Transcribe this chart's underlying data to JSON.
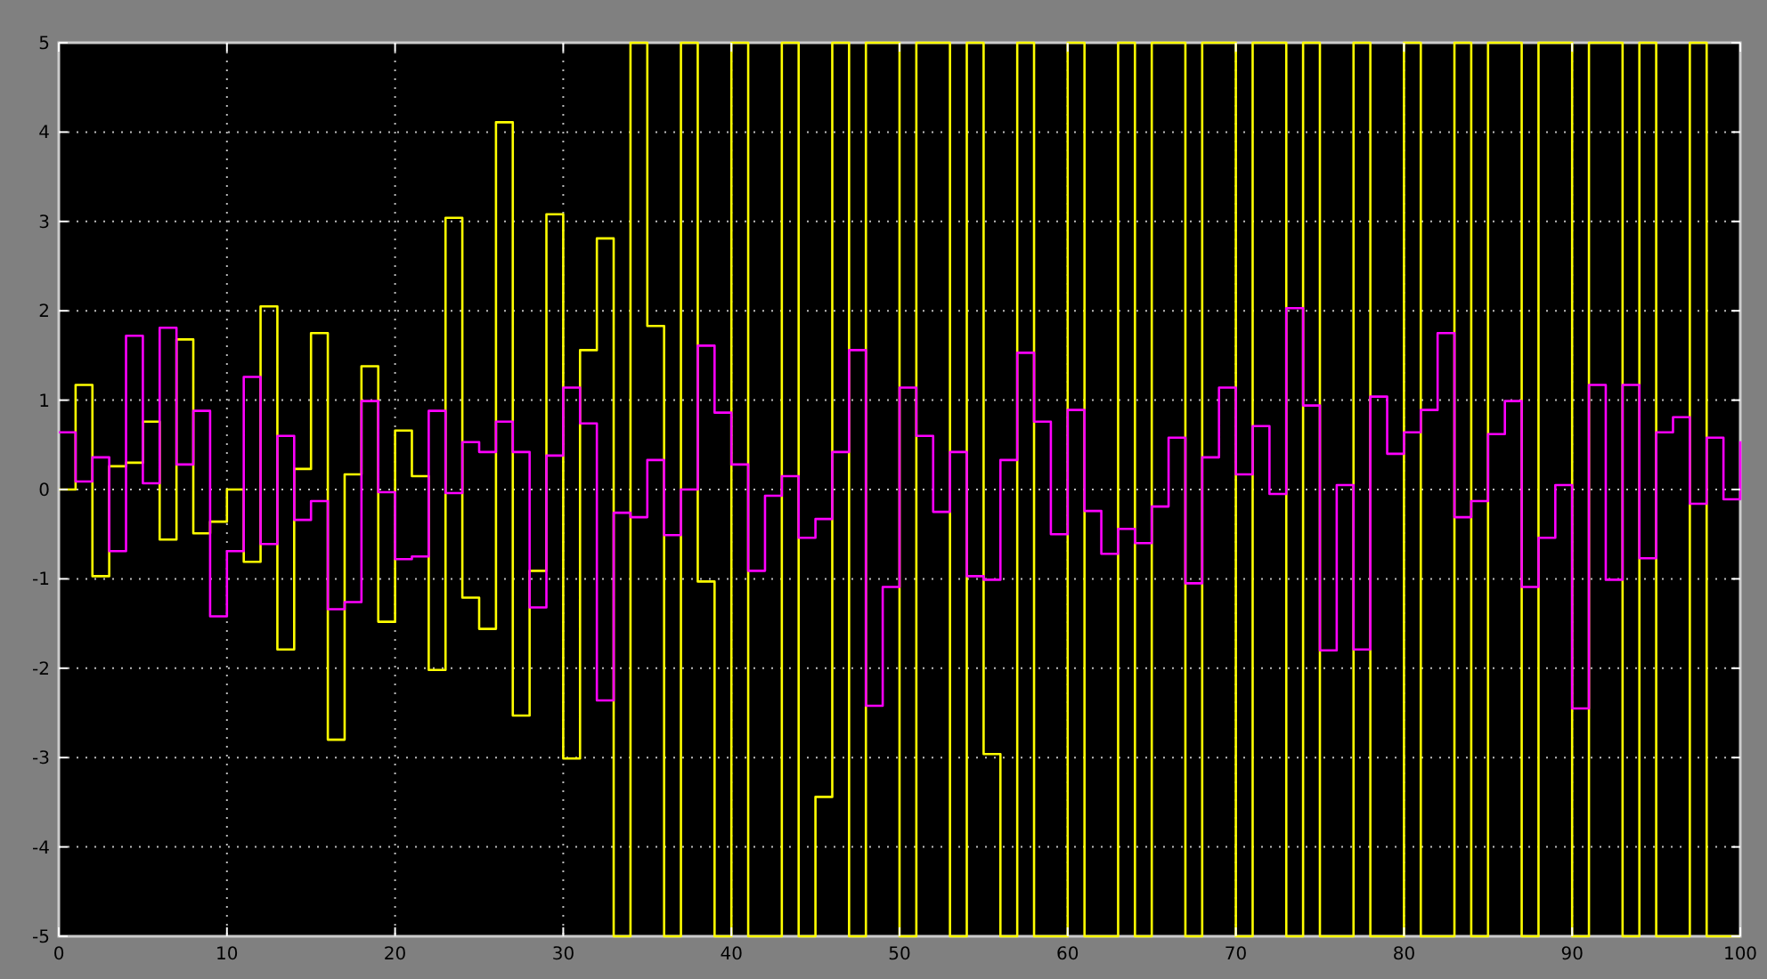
{
  "chart_data": {
    "type": "step",
    "x": [
      0,
      1,
      2,
      3,
      4,
      5,
      6,
      7,
      8,
      9,
      10,
      11,
      12,
      13,
      14,
      15,
      16,
      17,
      18,
      19,
      20,
      21,
      22,
      23,
      24,
      25,
      26,
      27,
      28,
      29,
      30,
      31,
      32,
      33,
      34,
      35,
      36,
      37,
      38,
      39,
      40,
      41,
      42,
      43,
      44,
      45,
      46,
      47,
      48,
      49,
      50,
      51,
      52,
      53,
      54,
      55,
      56,
      57,
      58,
      59,
      60,
      61,
      62,
      63,
      64,
      65,
      66,
      67,
      68,
      69,
      70,
      71,
      72,
      73,
      74,
      75,
      76,
      77,
      78,
      79,
      80,
      81,
      82,
      83,
      84,
      85,
      86,
      87,
      88,
      89,
      90,
      91,
      92,
      93,
      94,
      95,
      96,
      97,
      98,
      99,
      100
    ],
    "series": [
      {
        "color": "#ffff00",
        "values": [
          0,
          1.17,
          -0.97,
          0.26,
          0.3,
          0.76,
          -0.56,
          1.68,
          -0.49,
          -0.36,
          0,
          -0.81,
          2.05,
          -1.79,
          0.23,
          1.75,
          -2.8,
          0.17,
          1.38,
          -1.48,
          0.66,
          0.15,
          -2.02,
          3.04,
          -1.21,
          -1.56,
          4.11,
          -2.53,
          -0.91,
          3.08,
          -3.01,
          1.56,
          2.81,
          -5,
          5,
          1.83,
          -5,
          5,
          -1.03,
          -5,
          5,
          -5,
          -5,
          5,
          -5,
          -3.44,
          5,
          -5,
          5,
          5,
          -5,
          5,
          5,
          -5,
          5,
          -2.96,
          -5,
          5,
          -5,
          -5,
          5,
          -5,
          -5,
          5,
          -5,
          5,
          5,
          -5,
          5,
          5,
          -5,
          5,
          5,
          -5,
          5,
          -5,
          -5,
          5,
          -5,
          -5,
          5,
          -5,
          -5,
          5,
          -5,
          5,
          5,
          -5,
          5,
          5,
          -5,
          5,
          5,
          -5,
          5,
          -5,
          -5,
          5,
          -5,
          -5,
          -5
        ]
      },
      {
        "color": "#ff00ff",
        "values": [
          0.64,
          0.09,
          0.36,
          -0.69,
          1.72,
          0.07,
          1.81,
          0.28,
          0.88,
          -1.42,
          -0.69,
          1.26,
          -0.61,
          0.6,
          -0.34,
          -0.13,
          -1.34,
          -1.26,
          0.99,
          -0.03,
          -0.78,
          -0.75,
          0.88,
          -0.04,
          0.53,
          0.42,
          0.76,
          0.42,
          -1.32,
          0.38,
          1.14,
          0.74,
          -2.36,
          -0.26,
          -0.31,
          0.33,
          -0.51,
          0,
          1.61,
          0.86,
          0.28,
          -0.91,
          -0.07,
          0.15,
          -0.54,
          -0.33,
          0.42,
          1.56,
          -2.42,
          -1.09,
          1.14,
          0.6,
          -0.25,
          0.42,
          -0.97,
          -1.01,
          0.33,
          1.53,
          0.76,
          -0.5,
          0.89,
          -0.24,
          -0.72,
          -0.44,
          -0.6,
          -0.19,
          0.58,
          -1.05,
          0.36,
          1.14,
          0.17,
          0.71,
          -0.05,
          2.03,
          0.94,
          -1.8,
          0.05,
          -1.79,
          1.04,
          0.4,
          0.64,
          0.89,
          1.75,
          -0.31,
          -0.13,
          0.62,
          0.99,
          -1.09,
          -0.54,
          0.05,
          -2.45,
          1.17,
          -1.01,
          1.17,
          -0.77,
          0.64,
          0.81,
          -0.16,
          0.58,
          -0.11,
          0.54
        ]
      }
    ],
    "xlim": [
      0,
      100
    ],
    "xticks": [
      0,
      10,
      20,
      30,
      40,
      50,
      60,
      70,
      80,
      90,
      100
    ],
    "ylim": [
      -5,
      5
    ],
    "yticks": [
      -5,
      -4,
      -3,
      -2,
      -1,
      0,
      1,
      2,
      3,
      4,
      5
    ],
    "grid": true
  }
}
